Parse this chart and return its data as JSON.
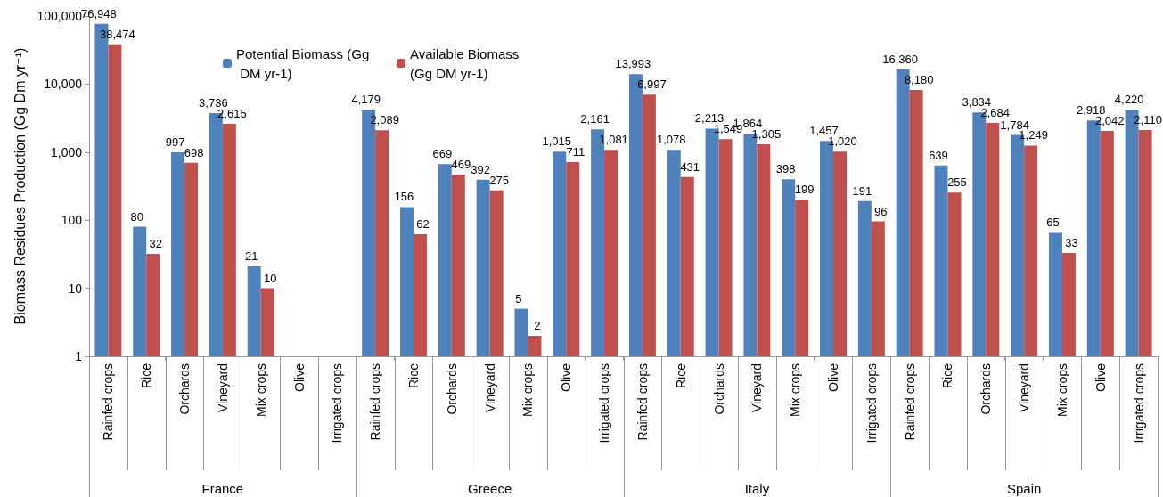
{
  "chart_data": {
    "type": "bar",
    "ylabel": "Biomass Residues Production (Gg Dm yr⁻¹)",
    "categories": [
      "Rainfed crops",
      "Rice",
      "Orchards",
      "Vineyard",
      "Mix crops",
      "Olive",
      "Irrigated crops",
      "Rainfed crops",
      "Rice",
      "Orchards",
      "Vineyard",
      "Mix crops",
      "Olive",
      "Irrigated crops",
      "Rainfed crops",
      "Rice",
      "Orchards",
      "Vineyard",
      "Mix crops",
      "Olive",
      "Irrigated crops",
      "Rainfed crops",
      "Rice",
      "Orchards",
      "Vineyard",
      "Mix crops",
      "Olive",
      "Irrigated crops"
    ],
    "series": [
      {
        "name": "Potential Biomass (Gg DM yr-1)",
        "color": "#4f81bd",
        "values": [
          76948,
          80,
          997,
          3736,
          21,
          null,
          null,
          4179,
          156,
          669,
          392,
          5,
          1015,
          2161,
          13993,
          1078,
          2213,
          1864,
          398,
          1457,
          191,
          16360,
          639,
          3834,
          1784,
          65,
          2918,
          4220
        ],
        "value_labels": [
          "76,948",
          "80",
          "997",
          "3,736",
          "21",
          null,
          null,
          "4,179",
          "156",
          "669",
          "392",
          "5",
          "1,015",
          "2,161",
          "13,993",
          "1,078",
          "2,213",
          "1,864",
          "398",
          "1,457",
          "191",
          "16,360",
          "639",
          "3,834",
          "1,784",
          "65",
          "2,918",
          "4,220"
        ]
      },
      {
        "name": "Available Biomass (Gg DM yr-1)",
        "color": "#c0504d",
        "values": [
          38474,
          32,
          698,
          2615,
          10,
          null,
          null,
          2089,
          62,
          469,
          275,
          2,
          711,
          1081,
          6997,
          431,
          1549,
          1305,
          199,
          1020,
          96,
          8180,
          255,
          2684,
          1249,
          33,
          2042,
          2110
        ],
        "value_labels": [
          "38,474",
          "32",
          "698",
          "2,615",
          "10",
          null,
          null,
          "2,089",
          "62",
          "469",
          "275",
          "2",
          "711",
          "1,081",
          "6,997",
          "431",
          "1,549",
          "1,305",
          "199",
          "1,020",
          "96",
          "8,180",
          "255",
          "2,684",
          "1,249",
          "33",
          "2,042",
          "2,110"
        ]
      }
    ],
    "annotations": [
      "France",
      "Greece",
      "Italy",
      "Spain"
    ],
    "log": true,
    "ylim": [
      1,
      100000
    ],
    "yticks": [
      1,
      10,
      100,
      {
        "value": 1000,
        "label": "1,000"
      },
      {
        "value": 10000,
        "label": "10,000"
      },
      {
        "value": 100000,
        "label": "100,000"
      }
    ],
    "grid": false,
    "legend": "top left"
  }
}
